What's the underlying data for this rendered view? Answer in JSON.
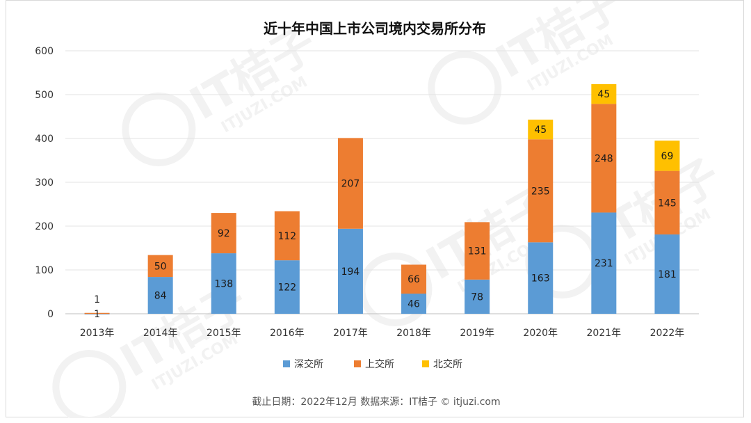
{
  "chart_data": {
    "type": "bar",
    "stacked": true,
    "title": "近十年中国上市公司境内交易所分布",
    "categories": [
      "2013年",
      "2014年",
      "2015年",
      "2016年",
      "2017年",
      "2018年",
      "2019年",
      "2020年",
      "2021年",
      "2022年"
    ],
    "series": [
      {
        "name": "深交所",
        "color": "#5b9bd5",
        "values": [
          1,
          84,
          138,
          122,
          194,
          46,
          78,
          163,
          231,
          181
        ]
      },
      {
        "name": "上交所",
        "color": "#ed7d31",
        "values": [
          1,
          50,
          92,
          112,
          207,
          66,
          131,
          235,
          248,
          145
        ]
      },
      {
        "name": "北交所",
        "color": "#ffc000",
        "values": [
          null,
          null,
          null,
          null,
          null,
          null,
          null,
          45,
          45,
          69
        ]
      }
    ],
    "ylim": [
      0,
      600
    ],
    "yticks": [
      0,
      100,
      200,
      300,
      400,
      500,
      600
    ],
    "xlabel": "",
    "ylabel": "",
    "grid": true,
    "legend": "bottom-center"
  },
  "footer": "截止日期：2022年12月     数据来源：IT桔子 © itjuzi.com",
  "watermark": {
    "text": "IT桔子",
    "sub": "ITJUZI.COM"
  }
}
